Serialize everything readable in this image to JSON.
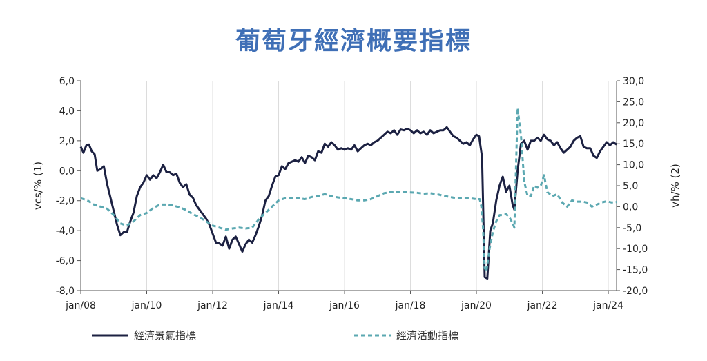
{
  "chart_data": {
    "type": "line",
    "title": "葡萄牙經濟概要指標",
    "ylabel_left": "vcs/% (1)",
    "ylabel_right": "vh/% (2)",
    "ylim_left": [
      -8,
      6
    ],
    "ylim_right": [
      -20,
      30
    ],
    "xlim": [
      2008.0,
      2024.25
    ],
    "yticks_left": [
      "6,0",
      "4,0",
      "2,0",
      "0,0",
      "-2,0",
      "-4,0",
      "-6,0",
      "-8,0"
    ],
    "yticks_right": [
      "30,0",
      "25,0",
      "20,0",
      "15,0",
      "10,0",
      "5,0",
      "0,0",
      "-5,0",
      "-10,0",
      "-15,0",
      "-20,0"
    ],
    "xticks": [
      "jan/08",
      "jan/10",
      "jan/12",
      "jan/14",
      "jan/16",
      "jan/18",
      "jan/20",
      "jan/22",
      "jan/24"
    ],
    "grid": "vertical",
    "legend_position": "bottom",
    "series": [
      {
        "name": "經濟景氣指標",
        "axis": "left",
        "color": "#1c2142",
        "style": "solid",
        "points": [
          [
            2008.0,
            1.6
          ],
          [
            2008.08,
            1.2
          ],
          [
            2008.17,
            1.7
          ],
          [
            2008.25,
            1.75
          ],
          [
            2008.33,
            1.3
          ],
          [
            2008.42,
            1.1
          ],
          [
            2008.5,
            0.0
          ],
          [
            2008.6,
            0.1
          ],
          [
            2008.7,
            0.3
          ],
          [
            2008.8,
            -0.9
          ],
          [
            2008.9,
            -1.8
          ],
          [
            2009.0,
            -2.7
          ],
          [
            2009.1,
            -3.6
          ],
          [
            2009.2,
            -4.3
          ],
          [
            2009.3,
            -4.1
          ],
          [
            2009.4,
            -4.1
          ],
          [
            2009.5,
            -3.4
          ],
          [
            2009.6,
            -2.8
          ],
          [
            2009.7,
            -1.7
          ],
          [
            2009.8,
            -1.1
          ],
          [
            2009.9,
            -0.8
          ],
          [
            2010.0,
            -0.3
          ],
          [
            2010.1,
            -0.6
          ],
          [
            2010.2,
            -0.3
          ],
          [
            2010.3,
            -0.5
          ],
          [
            2010.4,
            -0.1
          ],
          [
            2010.5,
            0.4
          ],
          [
            2010.6,
            -0.1
          ],
          [
            2010.7,
            -0.1
          ],
          [
            2010.8,
            -0.3
          ],
          [
            2010.9,
            -0.2
          ],
          [
            2011.0,
            -0.8
          ],
          [
            2011.1,
            -1.1
          ],
          [
            2011.2,
            -0.9
          ],
          [
            2011.3,
            -1.6
          ],
          [
            2011.4,
            -1.8
          ],
          [
            2011.5,
            -2.3
          ],
          [
            2011.6,
            -2.6
          ],
          [
            2011.7,
            -2.9
          ],
          [
            2011.8,
            -3.2
          ],
          [
            2011.9,
            -3.6
          ],
          [
            2012.0,
            -4.2
          ],
          [
            2012.1,
            -4.8
          ],
          [
            2012.2,
            -4.85
          ],
          [
            2012.3,
            -5.0
          ],
          [
            2012.4,
            -4.4
          ],
          [
            2012.5,
            -5.2
          ],
          [
            2012.6,
            -4.6
          ],
          [
            2012.7,
            -4.4
          ],
          [
            2012.8,
            -4.9
          ],
          [
            2012.9,
            -5.4
          ],
          [
            2013.0,
            -4.9
          ],
          [
            2013.1,
            -4.6
          ],
          [
            2013.2,
            -4.8
          ],
          [
            2013.3,
            -4.3
          ],
          [
            2013.4,
            -3.7
          ],
          [
            2013.5,
            -3.0
          ],
          [
            2013.6,
            -2.0
          ],
          [
            2013.7,
            -1.7
          ],
          [
            2013.8,
            -1.0
          ],
          [
            2013.9,
            -0.4
          ],
          [
            2014.0,
            -0.3
          ],
          [
            2014.1,
            0.3
          ],
          [
            2014.2,
            0.1
          ],
          [
            2014.3,
            0.5
          ],
          [
            2014.4,
            0.6
          ],
          [
            2014.5,
            0.7
          ],
          [
            2014.6,
            0.6
          ],
          [
            2014.7,
            0.9
          ],
          [
            2014.8,
            0.5
          ],
          [
            2014.9,
            1.0
          ],
          [
            2015.0,
            0.9
          ],
          [
            2015.1,
            0.7
          ],
          [
            2015.2,
            1.3
          ],
          [
            2015.3,
            1.2
          ],
          [
            2015.4,
            1.8
          ],
          [
            2015.5,
            1.6
          ],
          [
            2015.6,
            1.9
          ],
          [
            2015.7,
            1.7
          ],
          [
            2015.8,
            1.4
          ],
          [
            2015.9,
            1.5
          ],
          [
            2016.0,
            1.4
          ],
          [
            2016.1,
            1.5
          ],
          [
            2016.2,
            1.4
          ],
          [
            2016.3,
            1.7
          ],
          [
            2016.4,
            1.3
          ],
          [
            2016.5,
            1.5
          ],
          [
            2016.6,
            1.7
          ],
          [
            2016.7,
            1.8
          ],
          [
            2016.8,
            1.7
          ],
          [
            2016.9,
            1.9
          ],
          [
            2017.0,
            2.0
          ],
          [
            2017.1,
            2.2
          ],
          [
            2017.2,
            2.4
          ],
          [
            2017.3,
            2.6
          ],
          [
            2017.4,
            2.5
          ],
          [
            2017.5,
            2.7
          ],
          [
            2017.6,
            2.4
          ],
          [
            2017.7,
            2.75
          ],
          [
            2017.8,
            2.7
          ],
          [
            2017.9,
            2.8
          ],
          [
            2018.0,
            2.7
          ],
          [
            2018.1,
            2.5
          ],
          [
            2018.2,
            2.7
          ],
          [
            2018.3,
            2.5
          ],
          [
            2018.4,
            2.6
          ],
          [
            2018.5,
            2.4
          ],
          [
            2018.6,
            2.7
          ],
          [
            2018.7,
            2.5
          ],
          [
            2018.8,
            2.6
          ],
          [
            2018.9,
            2.7
          ],
          [
            2019.0,
            2.7
          ],
          [
            2019.1,
            2.9
          ],
          [
            2019.2,
            2.6
          ],
          [
            2019.3,
            2.3
          ],
          [
            2019.4,
            2.2
          ],
          [
            2019.5,
            2.0
          ],
          [
            2019.6,
            1.8
          ],
          [
            2019.7,
            1.9
          ],
          [
            2019.8,
            1.7
          ],
          [
            2019.9,
            2.1
          ],
          [
            2020.0,
            2.4
          ],
          [
            2020.08,
            2.3
          ],
          [
            2020.17,
            0.9
          ],
          [
            2020.25,
            -7.1
          ],
          [
            2020.33,
            -7.2
          ],
          [
            2020.42,
            -4.0
          ],
          [
            2020.5,
            -3.5
          ],
          [
            2020.6,
            -2.0
          ],
          [
            2020.7,
            -1.0
          ],
          [
            2020.8,
            -0.4
          ],
          [
            2020.9,
            -1.4
          ],
          [
            2021.0,
            -1.0
          ],
          [
            2021.1,
            -2.3
          ],
          [
            2021.15,
            -2.6
          ],
          [
            2021.25,
            0.0
          ],
          [
            2021.35,
            1.8
          ],
          [
            2021.45,
            2.0
          ],
          [
            2021.55,
            1.4
          ],
          [
            2021.65,
            2.0
          ],
          [
            2021.75,
            2.0
          ],
          [
            2021.85,
            2.2
          ],
          [
            2021.95,
            2.0
          ],
          [
            2022.05,
            2.4
          ],
          [
            2022.15,
            2.1
          ],
          [
            2022.25,
            2.0
          ],
          [
            2022.35,
            1.7
          ],
          [
            2022.45,
            1.9
          ],
          [
            2022.55,
            1.5
          ],
          [
            2022.65,
            1.2
          ],
          [
            2022.75,
            1.4
          ],
          [
            2022.85,
            1.6
          ],
          [
            2022.95,
            2.0
          ],
          [
            2023.05,
            2.2
          ],
          [
            2023.15,
            2.3
          ],
          [
            2023.25,
            1.6
          ],
          [
            2023.35,
            1.5
          ],
          [
            2023.45,
            1.5
          ],
          [
            2023.55,
            1.0
          ],
          [
            2023.65,
            0.85
          ],
          [
            2023.75,
            1.3
          ],
          [
            2023.85,
            1.6
          ],
          [
            2023.95,
            1.9
          ],
          [
            2024.05,
            1.7
          ],
          [
            2024.15,
            1.9
          ],
          [
            2024.25,
            1.75
          ]
        ]
      },
      {
        "name": "經濟活動指標",
        "axis": "right",
        "color": "#5ba8b1",
        "style": "dashed",
        "points": [
          [
            2008.0,
            2.0
          ],
          [
            2008.2,
            1.5
          ],
          [
            2008.4,
            0.5
          ],
          [
            2008.6,
            0.0
          ],
          [
            2008.8,
            -0.5
          ],
          [
            2009.0,
            -2.0
          ],
          [
            2009.2,
            -4.0
          ],
          [
            2009.4,
            -4.5
          ],
          [
            2009.6,
            -3.5
          ],
          [
            2009.8,
            -2.0
          ],
          [
            2010.0,
            -1.5
          ],
          [
            2010.2,
            -0.3
          ],
          [
            2010.4,
            0.5
          ],
          [
            2010.6,
            0.5
          ],
          [
            2010.8,
            0.3
          ],
          [
            2011.0,
            -0.2
          ],
          [
            2011.2,
            -0.8
          ],
          [
            2011.4,
            -1.8
          ],
          [
            2011.6,
            -2.5
          ],
          [
            2011.8,
            -3.5
          ],
          [
            2012.0,
            -4.5
          ],
          [
            2012.2,
            -5.0
          ],
          [
            2012.4,
            -5.5
          ],
          [
            2012.6,
            -5.2
          ],
          [
            2012.8,
            -5.0
          ],
          [
            2013.0,
            -5.2
          ],
          [
            2013.2,
            -5.0
          ],
          [
            2013.4,
            -3.0
          ],
          [
            2013.6,
            -1.5
          ],
          [
            2013.8,
            0.0
          ],
          [
            2014.0,
            1.5
          ],
          [
            2014.2,
            2.0
          ],
          [
            2014.4,
            2.0
          ],
          [
            2014.6,
            2.0
          ],
          [
            2014.8,
            1.8
          ],
          [
            2015.0,
            2.3
          ],
          [
            2015.2,
            2.5
          ],
          [
            2015.4,
            3.0
          ],
          [
            2015.6,
            2.5
          ],
          [
            2015.8,
            2.2
          ],
          [
            2016.0,
            2.0
          ],
          [
            2016.2,
            1.8
          ],
          [
            2016.4,
            1.5
          ],
          [
            2016.6,
            1.5
          ],
          [
            2016.8,
            1.8
          ],
          [
            2017.0,
            2.5
          ],
          [
            2017.2,
            3.2
          ],
          [
            2017.4,
            3.5
          ],
          [
            2017.6,
            3.6
          ],
          [
            2017.8,
            3.5
          ],
          [
            2018.0,
            3.4
          ],
          [
            2018.2,
            3.3
          ],
          [
            2018.4,
            3.1
          ],
          [
            2018.6,
            3.2
          ],
          [
            2018.8,
            3.0
          ],
          [
            2019.0,
            2.6
          ],
          [
            2019.2,
            2.3
          ],
          [
            2019.4,
            2.0
          ],
          [
            2019.6,
            2.0
          ],
          [
            2019.8,
            2.0
          ],
          [
            2020.0,
            1.8
          ],
          [
            2020.1,
            1.8
          ],
          [
            2020.15,
            0.0
          ],
          [
            2020.2,
            -5.0
          ],
          [
            2020.25,
            -14.5
          ],
          [
            2020.3,
            -15.5
          ],
          [
            2020.4,
            -10.0
          ],
          [
            2020.5,
            -6.0
          ],
          [
            2020.6,
            -3.5
          ],
          [
            2020.7,
            -2.0
          ],
          [
            2020.8,
            -2.0
          ],
          [
            2020.9,
            -1.8
          ],
          [
            2021.0,
            -2.5
          ],
          [
            2021.1,
            -4.0
          ],
          [
            2021.15,
            -5.0
          ],
          [
            2021.25,
            23.5
          ],
          [
            2021.35,
            17.0
          ],
          [
            2021.45,
            6.0
          ],
          [
            2021.55,
            2.5
          ],
          [
            2021.65,
            2.5
          ],
          [
            2021.75,
            5.0
          ],
          [
            2021.85,
            4.5
          ],
          [
            2021.95,
            5.0
          ],
          [
            2022.05,
            7.5
          ],
          [
            2022.15,
            3.5
          ],
          [
            2022.3,
            2.5
          ],
          [
            2022.45,
            3.0
          ],
          [
            2022.6,
            1.0
          ],
          [
            2022.75,
            0.0
          ],
          [
            2022.9,
            1.5
          ],
          [
            2023.05,
            1.2
          ],
          [
            2023.2,
            1.2
          ],
          [
            2023.35,
            1.0
          ],
          [
            2023.5,
            0.0
          ],
          [
            2023.65,
            0.5
          ],
          [
            2023.8,
            1.0
          ],
          [
            2023.95,
            1.3
          ],
          [
            2024.1,
            1.0
          ],
          [
            2024.25,
            1.1
          ]
        ]
      }
    ]
  }
}
